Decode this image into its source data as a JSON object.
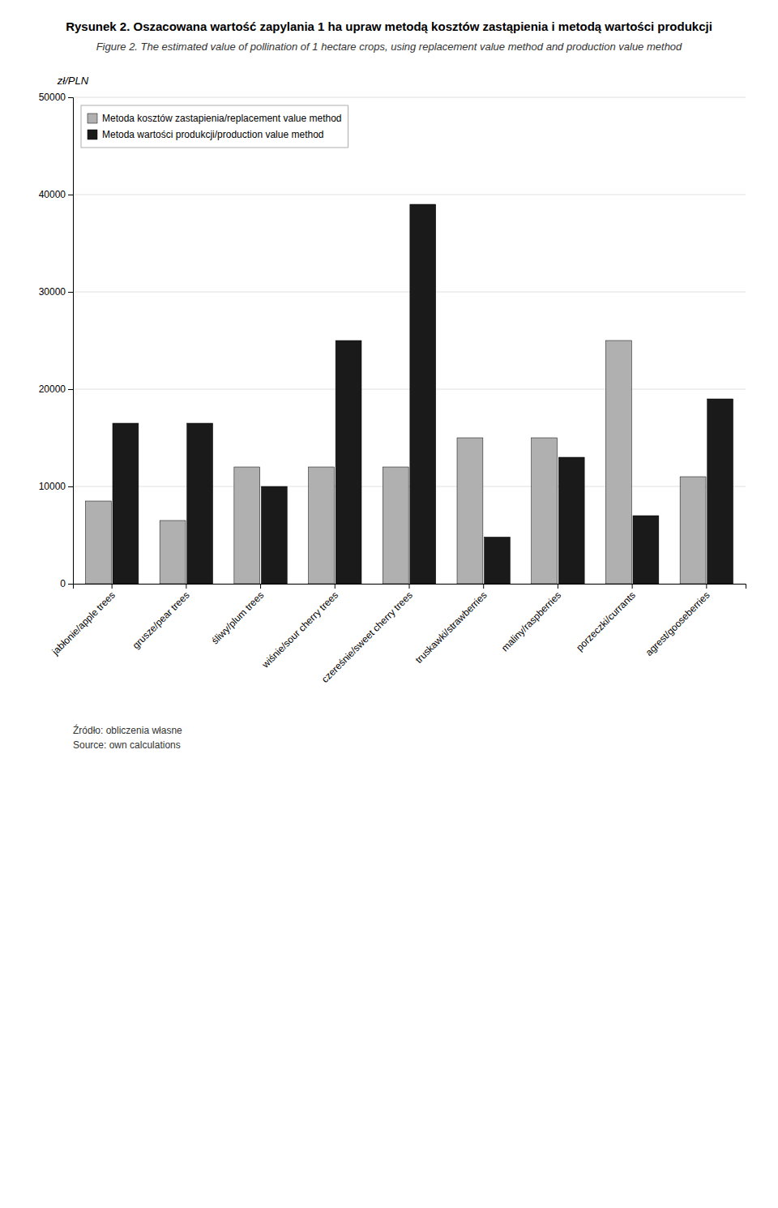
{
  "chart_data": {
    "type": "bar",
    "title": "Rysunek 2. Oszacowana wartość zapylania 1 ha upraw metodą kosztów zastąpienia i metodą wartości produkcji",
    "subtitle": "Figure 2. The estimated value of pollination of 1 hectare crops, using replacement value method and production value method",
    "ylabel": "zł/PLN",
    "categories": [
      "jabłonie/apple trees",
      "grusze/pear trees",
      "śliwy/plum trees",
      "wiśnie/sour cherry trees",
      "czereśnie/sweet cherry trees",
      "truskawki/strawberries",
      "maliny/raspberries",
      "porzeczki/currants",
      "agrest/gooseberries"
    ],
    "series": [
      {
        "name": "Metoda kosztów zastapienia/replacement value method",
        "color": "#b0b0b0",
        "values": [
          8500,
          6500,
          12000,
          12000,
          12000,
          15000,
          15000,
          25000,
          11000
        ]
      },
      {
        "name": "Metoda wartości produkcji/production value method",
        "color": "#1a1a1a",
        "values": [
          16500,
          16500,
          10000,
          25000,
          39000,
          4800,
          13000,
          7000,
          19000
        ]
      }
    ],
    "ylim": [
      0,
      50000
    ],
    "yticks": [
      0,
      10000,
      20000,
      30000,
      40000,
      50000
    ],
    "grid": true,
    "legend": "upper left",
    "annotations": [
      "Źródło: obliczenia własne",
      "Source: own calculations"
    ]
  }
}
